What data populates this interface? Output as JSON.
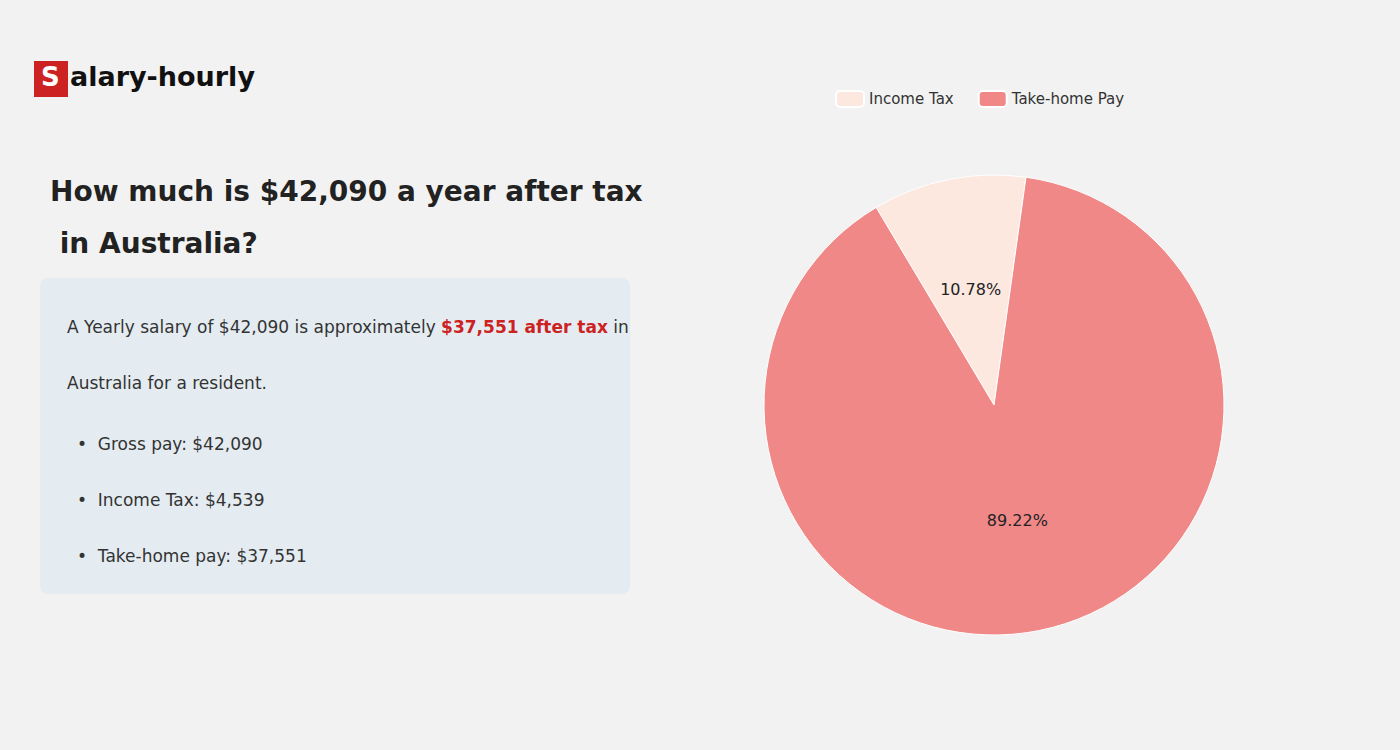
{
  "chart_data": {
    "type": "pie",
    "title": "How much is $42,090 a year after tax in Australia?",
    "annotations": [
      "S",
      "alary-hourly",
      "A Yearly salary of $42,090 is approximately ",
      "$37,551 after tax",
      " in",
      "Australia for a resident.",
      "•  Gross pay: $42,090",
      "•  Income Tax: $4,539",
      "•  Take-home pay: $37,551"
    ],
    "categories": [
      "Income Tax",
      "Take-home Pay"
    ],
    "values": [
      10.78,
      89.22
    ],
    "value_labels": [
      "10.78%",
      "89.22%"
    ],
    "colors": [
      "#fde8e0",
      "#f08888"
    ],
    "data_labels": true,
    "legend": "top"
  }
}
